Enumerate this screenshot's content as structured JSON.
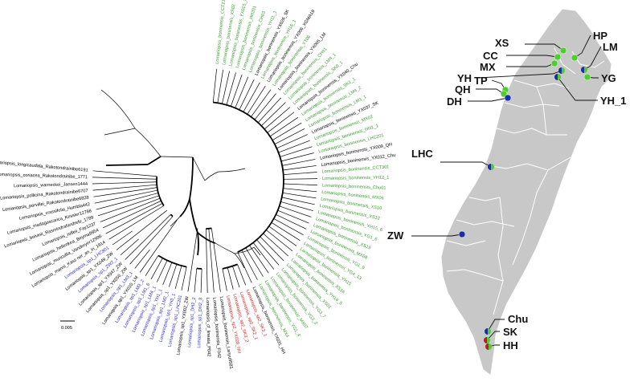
{
  "colors": {
    "background": "#ffffff",
    "clade_green": "#3a9e2f",
    "clade_blue": "#2b2bd6",
    "clade_red": "#d42020",
    "outgroup_black": "#000000",
    "island_fill": "#c8c8c8",
    "county_lines": "#ffffff",
    "pin_blue": "#1a2ea8",
    "pin_green": "#4ccf2a",
    "pin_red": "#c0182b"
  },
  "tree": {
    "scale_label": "0.005",
    "clade_order": [
      "outgroup",
      "blue",
      "red",
      "green"
    ],
    "tips": [
      {
        "label": "Lomariopsis_boninensis_CCT210",
        "clade": "green"
      },
      {
        "label": "Lomariopsis_boninensis_XS02",
        "clade": "green"
      },
      {
        "label": "Lomariopsis_boninensis_YX015_XS",
        "clade": "green"
      },
      {
        "label": "Lomariopsis_boninensis_HH201",
        "clade": "green"
      },
      {
        "label": "Lomariopsis_boninensis_CH03",
        "clade": "green"
      },
      {
        "label": "Lomariopsis_boninensis_YH11_1",
        "clade": "green"
      },
      {
        "label": "Lomariopsis_boninensis_YX026_SK",
        "clade": "outgroup"
      },
      {
        "label": "Lomariopsis_boninensis_YH16_1",
        "clade": "green"
      },
      {
        "label": "Lomariopsis_boninensis_YX006_XGMA19",
        "clade": "outgroup"
      },
      {
        "label": "Lomariopsis_boninensis_YT06",
        "clade": "green"
      },
      {
        "label": "Lomariopsis_boninensis_YX005_LM",
        "clade": "outgroup"
      },
      {
        "label": "Lomariopsis_boninensis_CH01",
        "clade": "green"
      },
      {
        "label": "Lomariopsis_boninensis_LM4_1",
        "clade": "green"
      },
      {
        "label": "Lomariopsis_boninensis_SK0_1",
        "clade": "green"
      },
      {
        "label": "Lomariopsis_boninensis_YX040_Chu",
        "clade": "outgroup"
      },
      {
        "label": "Lomariopsis_boninensis_SK1_1",
        "clade": "green"
      },
      {
        "label": "Lomariopsis_boninensis_LM4_2",
        "clade": "green"
      },
      {
        "label": "Lomariopsis_boninensis_LM1_1",
        "clade": "green"
      },
      {
        "label": "Lomariopsis_boninensis_YX037_SK",
        "clade": "outgroup"
      },
      {
        "label": "Lomariopsis_boninensis_MX02",
        "clade": "green"
      },
      {
        "label": "Lomariopsis_boninensis_HH1_1",
        "clade": "green"
      },
      {
        "label": "Lomariopsis_boninensis_LHC201",
        "clade": "green"
      },
      {
        "label": "Lomariopsis_boninensis_YX009_QH",
        "clade": "outgroup"
      },
      {
        "label": "Lomariopsis_boninensis_YX012_Chu",
        "clade": "outgroup"
      },
      {
        "label": "Lomariopsis_boninensis_CCT301",
        "clade": "green"
      },
      {
        "label": "Lomariopsis_boninensis_YH12_1",
        "clade": "green"
      },
      {
        "label": "Lomariopsis_boninensis_Chu01",
        "clade": "green"
      },
      {
        "label": "Lomariopsis_boninensis_MX06",
        "clade": "green"
      },
      {
        "label": "Lomariopsis_boninensis_XS10",
        "clade": "green"
      },
      {
        "label": "Lomariopsis_boninensis_XS12",
        "clade": "green"
      },
      {
        "label": "Lomariopsis_boninensis_YH15_6",
        "clade": "green"
      },
      {
        "label": "Lomariopsis_boninensis_YG1_6",
        "clade": "green"
      },
      {
        "label": "Lomariopsis_boninensis_XS19",
        "clade": "green"
      },
      {
        "label": "Lomariopsis_boninensis_MX08",
        "clade": "green"
      },
      {
        "label": "Lomariopsis_boninensis_YG1_9",
        "clade": "green"
      },
      {
        "label": "Lomariopsis_boninensis_YG4_13",
        "clade": "green"
      },
      {
        "label": "Lomariopsis_boninensis_YH15",
        "clade": "green"
      },
      {
        "label": "Lomariopsis_boninensis_XS16",
        "clade": "green"
      },
      {
        "label": "Lomariopsis_boninensis_YH14_5",
        "clade": "green"
      },
      {
        "label": "Lomariopsis_boninensis_XS01",
        "clade": "green"
      },
      {
        "label": "Lomariopsis_boninensis_YG3_7",
        "clade": "green"
      },
      {
        "label": "Lomariopsis_boninensis_YG3_2",
        "clade": "green"
      },
      {
        "label": "Lomariopsis_boninensis_MX07",
        "clade": "green"
      },
      {
        "label": "Lomariopsis_boninensis_YG1_4",
        "clade": "green"
      },
      {
        "label": "Lomariopsis_boninensis_MX4",
        "clade": "green"
      },
      {
        "label": "Lomariopsis_boninensis_YX031_HH",
        "clade": "outgroup"
      },
      {
        "label": "Lomariopsis_sp2_SK3_1",
        "clade": "red"
      },
      {
        "label": "Lomariopsis_sp2_SK2_1",
        "clade": "red"
      },
      {
        "label": "Lomariopsis_sp2_SK3_2",
        "clade": "red"
      },
      {
        "label": "Lomariopsis_sp2_YX028_HH",
        "clade": "red"
      },
      {
        "label": "Lomariopsis_boninensis_Lanyu9581",
        "clade": "outgroup"
      },
      {
        "label": "Lomariopsis_boninensis_F042",
        "clade": "outgroup"
      },
      {
        "label": "Lomariopsis_cf_lineata_P042",
        "clade": "outgroup"
      },
      {
        "label": "Lomariopsis_sp1_DH2_3",
        "clade": "blue"
      },
      {
        "label": "Lomariopsis_sp1_DH2_2",
        "clade": "blue"
      },
      {
        "label": "Lomariopsis_sp1_YX002_ZW",
        "clade": "outgroup"
      },
      {
        "label": "Lomariopsis_sp1_LHC201",
        "clade": "blue"
      },
      {
        "label": "Lomariopsis_sp1_YH3_1",
        "clade": "blue"
      },
      {
        "label": "Lomariopsis_sp1_LM2_1",
        "clade": "blue"
      },
      {
        "label": "Lomariopsis_sp1_YH1_1",
        "clade": "blue"
      },
      {
        "label": "Lomariopsis_sp1_LM4_1",
        "clade": "blue"
      },
      {
        "label": "Lomariopsis_sp1_LM1_6",
        "clade": "blue"
      },
      {
        "label": "Lomariopsis_sp1_LM3_2",
        "clade": "blue"
      },
      {
        "label": "Lomariopsis_sp1_YX010_LM",
        "clade": "outgroup"
      },
      {
        "label": "Lomariopsis_sp1_LM3_1",
        "clade": "blue"
      },
      {
        "label": "Lomariopsis_sp1_YX050_ZW",
        "clade": "outgroup"
      },
      {
        "label": "Lomariopsis_sp1_YX047_ZW",
        "clade": "outgroup"
      },
      {
        "label": "Lomariopsis_sp1_ZW2_1",
        "clade": "blue"
      },
      {
        "label": "Lomariopsis_sp1_YX049_ZW",
        "clade": "outgroup"
      },
      {
        "label": "Lomariopsis_sp1_LHC801",
        "clade": "blue"
      },
      {
        "label": "Lomariopsis_manni_Kass ner_an_in_1914",
        "clade": "outgroup"
      },
      {
        "label": "Lomariopsis_muricullia_Vanderyer12996",
        "clade": "outgroup"
      },
      {
        "label": "Lomariopsis_hellenkea_Beyma9954",
        "clade": "outgroup"
      },
      {
        "label": "Lomariopsis_rolfeii_Fay1237",
        "clade": "outgroup"
      },
      {
        "label": "Lomariopsis_boivinii_Rasmindrafandrefe_1789",
        "clade": "outgroup"
      },
      {
        "label": "Lomariopsis_madagascarica_Kessler12788",
        "clade": "outgroup"
      },
      {
        "label": "Lomariopsis_crassifolia_Humbla442",
        "clade": "outgroup"
      },
      {
        "label": "Lomariopsis_pervillei_Rakotondrainibe6828",
        "clade": "outgroup"
      },
      {
        "label": "Lomariopsis_pollicina_Rakotondrainibe6707",
        "clade": "outgroup"
      },
      {
        "label": "Lomariopsis_warneckei_Jansen1444",
        "clade": "outgroup"
      },
      {
        "label": "Lomariopsis_coriacea_Rakotondrainibe_1771",
        "clade": "outgroup"
      },
      {
        "label": "Lomariopsis_longicaudata_Rakotondrainibe6191",
        "clade": "outgroup"
      }
    ]
  },
  "map": {
    "sites": [
      {
        "label": "XS",
        "colors": [
          "#4ccf2a"
        ]
      },
      {
        "label": "CC",
        "colors": [
          "#4ccf2a"
        ]
      },
      {
        "label": "MX",
        "colors": [
          "#4ccf2a"
        ]
      },
      {
        "label": "YH",
        "colors": [
          "#1a2ea8",
          "#4ccf2a"
        ]
      },
      {
        "label": "HP",
        "colors": [
          "#4ccf2a"
        ]
      },
      {
        "label": "LM",
        "colors": [
          "#1a2ea8",
          "#4ccf2a"
        ]
      },
      {
        "label": "YG",
        "colors": [
          "#4ccf2a"
        ]
      },
      {
        "label": "YH_1",
        "colors": [
          "#1a2ea8",
          "#4ccf2a"
        ]
      },
      {
        "label": "TP",
        "colors": [
          "#4ccf2a"
        ]
      },
      {
        "label": "QH",
        "colors": [
          "#4ccf2a"
        ]
      },
      {
        "label": "DH",
        "colors": [
          "#1a2ea8"
        ]
      },
      {
        "label": "LHC",
        "colors": [
          "#1a2ea8",
          "#4ccf2a"
        ]
      },
      {
        "label": "ZW",
        "colors": [
          "#1a2ea8"
        ]
      },
      {
        "label": "Chu",
        "colors": [
          "#1a2ea8",
          "#4ccf2a"
        ]
      },
      {
        "label": "SK",
        "colors": [
          "#c0182b",
          "#4ccf2a"
        ]
      },
      {
        "label": "HH",
        "colors": [
          "#c0182b",
          "#4ccf2a"
        ]
      }
    ]
  }
}
